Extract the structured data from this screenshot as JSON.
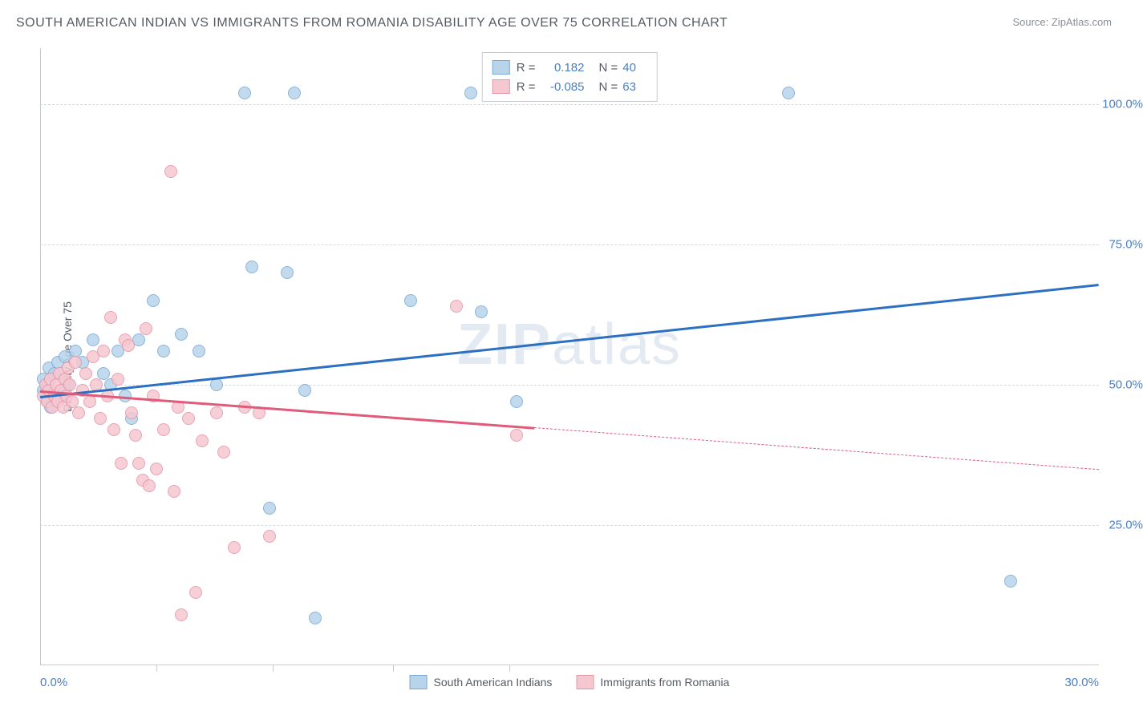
{
  "title": "SOUTH AMERICAN INDIAN VS IMMIGRANTS FROM ROMANIA DISABILITY AGE OVER 75 CORRELATION CHART",
  "source": "Source: ZipAtlas.com",
  "watermark_main": "ZIP",
  "watermark_sub": "atlas",
  "ylabel": "Disability Age Over 75",
  "chart": {
    "type": "scatter",
    "background_color": "#ffffff",
    "grid_color": "#d6d9dc",
    "axis_color": "#c8ccd0",
    "label_color": "#555b62",
    "tick_value_color": "#4a7fc4",
    "xlim": [
      0,
      30
    ],
    "ylim": [
      0,
      110
    ],
    "y_ticks": [
      25,
      50,
      75,
      100
    ],
    "y_tick_labels": [
      "25.0%",
      "50.0%",
      "75.0%",
      "100.0%"
    ],
    "x_ticks": [
      0,
      3.3,
      6.6,
      10,
      13.3,
      30
    ],
    "x_tick_labels_shown": {
      "0": "0.0%",
      "30": "30.0%"
    },
    "x_minor_ticks": [
      3.3,
      6.6,
      10,
      13.3
    ]
  },
  "series": [
    {
      "name": "South American Indians",
      "fill_color": "#b8d4ea",
      "stroke_color": "#7aa8d4",
      "line_color": "#2d6fc0",
      "r_value": "0.182",
      "n_value": "40",
      "trend": {
        "x1": 0,
        "y1": 48,
        "x2": 30,
        "y2": 68,
        "solid_until": 30
      },
      "points": [
        [
          0.1,
          49
        ],
        [
          0.1,
          51
        ],
        [
          0.15,
          48
        ],
        [
          0.2,
          47
        ],
        [
          0.2,
          50
        ],
        [
          0.25,
          53
        ],
        [
          0.3,
          46
        ],
        [
          0.4,
          52
        ],
        [
          0.5,
          54
        ],
        [
          0.6,
          48
        ],
        [
          0.7,
          55
        ],
        [
          0.8,
          50
        ],
        [
          1.0,
          56
        ],
        [
          1.2,
          54
        ],
        [
          1.5,
          58
        ],
        [
          1.8,
          52
        ],
        [
          2.0,
          50
        ],
        [
          2.2,
          56
        ],
        [
          2.4,
          48
        ],
        [
          2.6,
          44
        ],
        [
          2.8,
          58
        ],
        [
          3.2,
          65
        ],
        [
          3.5,
          56
        ],
        [
          4.0,
          59
        ],
        [
          4.5,
          56
        ],
        [
          5.0,
          50
        ],
        [
          5.8,
          102
        ],
        [
          6.0,
          71
        ],
        [
          6.5,
          28
        ],
        [
          7.0,
          70
        ],
        [
          7.2,
          102
        ],
        [
          7.5,
          49
        ],
        [
          7.8,
          8.5
        ],
        [
          10.5,
          65
        ],
        [
          12.2,
          102
        ],
        [
          12.5,
          63
        ],
        [
          13.5,
          47
        ],
        [
          21.2,
          102
        ],
        [
          27.5,
          15
        ]
      ]
    },
    {
      "name": "Immigrants from Romania",
      "fill_color": "#f5c7d1",
      "stroke_color": "#e594a8",
      "line_color": "#e05a7a",
      "r_value": "-0.085",
      "n_value": "63",
      "trend": {
        "x1": 0,
        "y1": 49,
        "x2": 30,
        "y2": 35,
        "solid_until": 14
      },
      "points": [
        [
          0.1,
          48
        ],
        [
          0.15,
          50
        ],
        [
          0.2,
          47
        ],
        [
          0.25,
          49
        ],
        [
          0.3,
          51
        ],
        [
          0.35,
          46
        ],
        [
          0.4,
          48
        ],
        [
          0.45,
          50
        ],
        [
          0.5,
          47
        ],
        [
          0.55,
          52
        ],
        [
          0.6,
          49
        ],
        [
          0.65,
          46
        ],
        [
          0.7,
          51
        ],
        [
          0.75,
          48
        ],
        [
          0.8,
          53
        ],
        [
          0.85,
          50
        ],
        [
          0.9,
          47
        ],
        [
          1.0,
          54
        ],
        [
          1.1,
          45
        ],
        [
          1.2,
          49
        ],
        [
          1.3,
          52
        ],
        [
          1.4,
          47
        ],
        [
          1.5,
          55
        ],
        [
          1.6,
          50
        ],
        [
          1.7,
          44
        ],
        [
          1.8,
          56
        ],
        [
          1.9,
          48
        ],
        [
          2.0,
          62
        ],
        [
          2.1,
          42
        ],
        [
          2.2,
          51
        ],
        [
          2.3,
          36
        ],
        [
          2.4,
          58
        ],
        [
          2.5,
          57
        ],
        [
          2.6,
          45
        ],
        [
          2.7,
          41
        ],
        [
          2.8,
          36
        ],
        [
          2.9,
          33
        ],
        [
          3.0,
          60
        ],
        [
          3.1,
          32
        ],
        [
          3.2,
          48
        ],
        [
          3.3,
          35
        ],
        [
          3.5,
          42
        ],
        [
          3.7,
          88
        ],
        [
          3.8,
          31
        ],
        [
          3.9,
          46
        ],
        [
          4.0,
          9
        ],
        [
          4.2,
          44
        ],
        [
          4.4,
          13
        ],
        [
          4.6,
          40
        ],
        [
          5.0,
          45
        ],
        [
          5.2,
          38
        ],
        [
          5.5,
          21
        ],
        [
          5.8,
          46
        ],
        [
          6.2,
          45
        ],
        [
          6.5,
          23
        ],
        [
          11.8,
          64
        ],
        [
          13.5,
          41
        ]
      ]
    }
  ],
  "legend_top": {
    "r_prefix": "R =",
    "n_prefix": "N ="
  }
}
